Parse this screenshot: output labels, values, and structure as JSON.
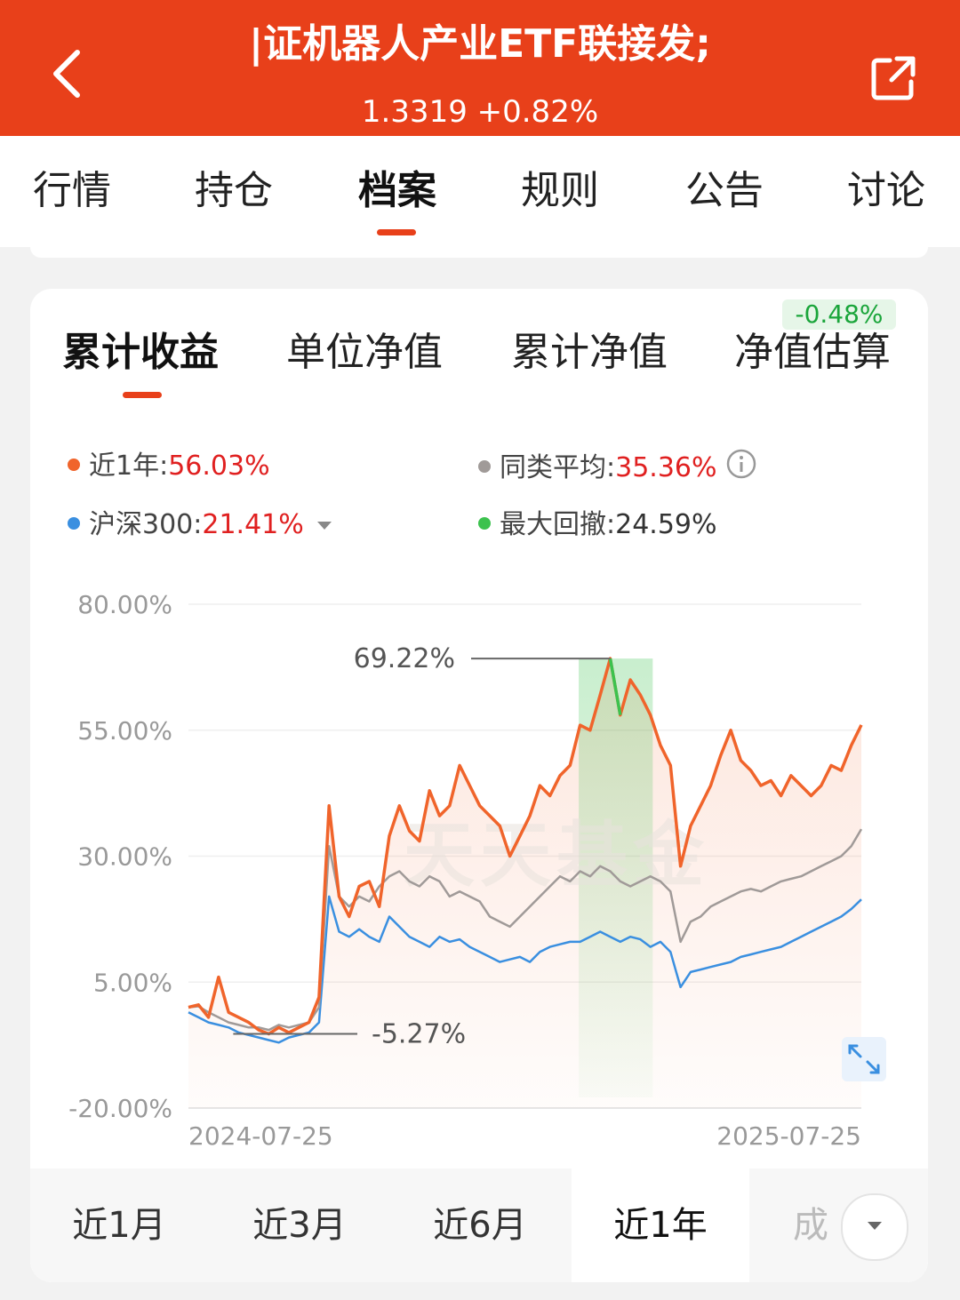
{
  "header": {
    "title": "|证机器人产业ETF联接发;",
    "subtitle": "1.3319 +0.82%",
    "accent_color": "#e8401a"
  },
  "tabs": [
    {
      "label": "行情"
    },
    {
      "label": "持仓"
    },
    {
      "label": "档案",
      "active": true
    },
    {
      "label": "规则"
    },
    {
      "label": "公告"
    },
    {
      "label": "讨论"
    }
  ],
  "subtabs": [
    {
      "label": "累计收益",
      "active": true
    },
    {
      "label": "单位净值"
    },
    {
      "label": "累计净值"
    },
    {
      "label": "净值估算"
    }
  ],
  "estimate_badge": "-0.48%",
  "legend": {
    "fund": {
      "label": "近1年:",
      "value": "56.03%",
      "color": "#f0642b"
    },
    "peer": {
      "label": "同类平均:",
      "value": "35.36%",
      "color": "#a09a98"
    },
    "index": {
      "label": "沪深300:",
      "value": "21.41%",
      "color": "#3a8fe0"
    },
    "drawdown": {
      "label": "最大回撤:",
      "value": "24.59%",
      "color": "#3cc24e"
    }
  },
  "chart_data": {
    "type": "line",
    "y_tick_labels": [
      "80.00%",
      "55.00%",
      "30.00%",
      "5.00%",
      "-20.00%"
    ],
    "ylim": [
      -20,
      80
    ],
    "x_tick_labels": [
      "2024-07-25",
      "2025-07-25"
    ],
    "annotations": {
      "max": "69.22%",
      "min": "-5.27%"
    },
    "watermark": "天天基金",
    "drawdown_range": [
      0.58,
      0.69
    ],
    "series": [
      {
        "name": "近1年",
        "color": "#f0642b",
        "values": [
          0.0,
          0.5,
          -2.0,
          6.0,
          -1.0,
          -2.0,
          -3.0,
          -4.5,
          -5.27,
          -4.0,
          -5.0,
          -4.0,
          -3.0,
          2.0,
          40.0,
          22.0,
          18.0,
          24.0,
          25.0,
          20.0,
          34.0,
          40.0,
          35.0,
          33.0,
          43.0,
          38.0,
          40.0,
          48.0,
          44.0,
          40.0,
          38.0,
          36.0,
          30.0,
          34.0,
          38.0,
          44.0,
          42.0,
          46.0,
          48.0,
          56.0,
          55.0,
          62.0,
          69.22,
          58.0,
          65.0,
          62.0,
          58.0,
          52.0,
          48.0,
          28.0,
          36.0,
          40.0,
          44.0,
          50.0,
          55.0,
          49.0,
          47.0,
          44.0,
          45.0,
          42.0,
          46.0,
          44.0,
          42.0,
          44.0,
          48.0,
          47.0,
          52.0,
          56.03
        ]
      },
      {
        "name": "同类平均",
        "color": "#a09a98",
        "values": [
          0.0,
          0.2,
          -1.0,
          -2.0,
          -3.0,
          -3.5,
          -4.0,
          -4.0,
          -4.5,
          -3.5,
          -4.0,
          -3.5,
          -3.0,
          0.0,
          32.0,
          22.0,
          20.0,
          22.0,
          21.0,
          24.0,
          26.0,
          27.0,
          25.0,
          24.0,
          26.0,
          25.0,
          22.0,
          23.0,
          22.0,
          21.0,
          18.0,
          17.0,
          16.0,
          18.0,
          20.0,
          22.0,
          24.0,
          26.0,
          25.0,
          27.0,
          26.0,
          28.0,
          27.0,
          25.0,
          24.0,
          25.0,
          26.0,
          25.0,
          23.0,
          13.0,
          17.0,
          18.0,
          20.0,
          21.0,
          22.0,
          23.0,
          23.5,
          23.0,
          24.0,
          25.0,
          25.5,
          26.0,
          27.0,
          28.0,
          29.0,
          30.0,
          32.0,
          35.36
        ]
      },
      {
        "name": "沪深300",
        "color": "#3a8fe0",
        "values": [
          -1.0,
          -2.0,
          -3.0,
          -3.5,
          -4.0,
          -5.0,
          -5.5,
          -6.0,
          -6.5,
          -7.0,
          -6.0,
          -5.5,
          -5.0,
          -3.0,
          22.0,
          15.0,
          14.0,
          15.5,
          14.0,
          13.0,
          18.0,
          16.0,
          14.0,
          13.0,
          12.0,
          14.0,
          13.0,
          13.5,
          12.0,
          11.0,
          10.0,
          9.0,
          9.5,
          10.0,
          9.0,
          11.0,
          12.0,
          12.5,
          13.0,
          13.0,
          14.0,
          15.0,
          14.0,
          13.0,
          14.0,
          13.5,
          12.0,
          13.0,
          11.0,
          4.0,
          7.0,
          7.5,
          8.0,
          8.5,
          9.0,
          10.0,
          10.5,
          11.0,
          11.5,
          12.0,
          13.0,
          14.0,
          15.0,
          16.0,
          17.0,
          18.0,
          19.5,
          21.41
        ]
      }
    ]
  },
  "periods": [
    {
      "label": "近1月"
    },
    {
      "label": "近3月"
    },
    {
      "label": "近6月"
    },
    {
      "label": "近1年",
      "active": true
    },
    {
      "label": "成"
    }
  ]
}
